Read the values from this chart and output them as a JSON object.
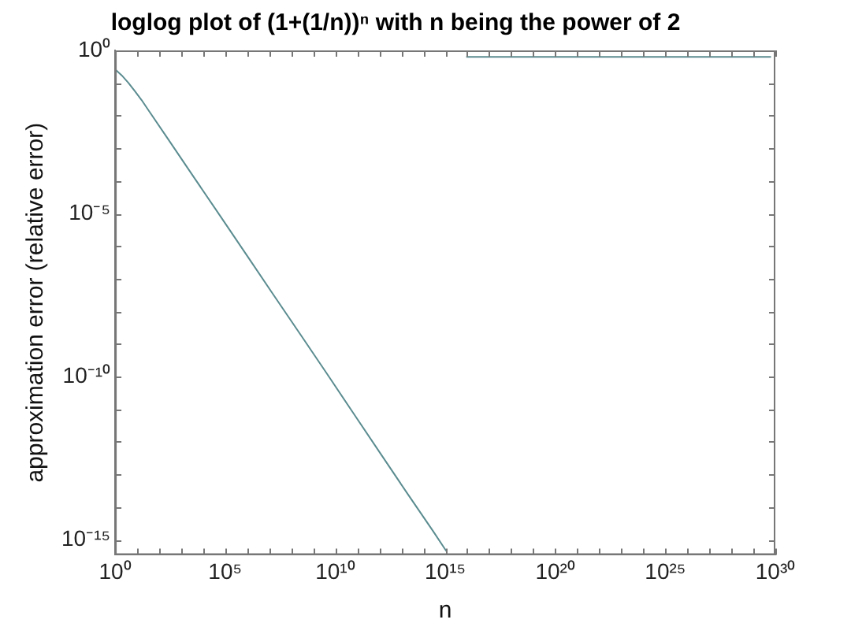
{
  "chart_data": {
    "type": "line",
    "title": "loglog plot of (1+(1/n))ⁿ with n being the power of 2",
    "xlabel": "n",
    "ylabel": "approximation error (relative error)",
    "x": [
      1,
      2,
      4,
      8,
      16,
      32,
      256,
      4096,
      65536,
      1048576,
      16777216,
      268435456,
      4294967296,
      68719476736,
      1099511627776,
      17592186044416,
      281474976710656,
      1125899906842624,
      2251799813685248,
      4503599627370496,
      9007199254740992,
      6.338253001141147e+29
    ],
    "series": [
      {
        "color": "#5b8c90",
        "values": [
          0.264,
          0.172,
          0.102,
          0.056,
          0.03,
          0.015,
          0.0019,
          0.00012,
          7.6e-06,
          4.8e-07,
          3e-08,
          1.9e-09,
          1.2e-10,
          7.3e-12,
          4.5e-13,
          2.8e-14,
          1.8e-15,
          4.4e-16,
          null,
          null,
          0.632,
          0.632
        ]
      }
    ],
    "log": "xy",
    "xlim": [
      1,
      1e+30
    ],
    "ylim": [
      3.4e-16,
      1
    ],
    "xticks": [
      {
        "value": 1,
        "label": "10⁰"
      },
      {
        "value": 10,
        "label": null
      },
      {
        "value": 100,
        "label": null
      },
      {
        "value": 1000,
        "label": null
      },
      {
        "value": 10000,
        "label": null
      },
      {
        "value": 100000.0,
        "label": "10⁵"
      },
      {
        "value": 1000000.0,
        "label": null
      },
      {
        "value": 10000000.0,
        "label": null
      },
      {
        "value": 100000000.0,
        "label": null
      },
      {
        "value": 1000000000.0,
        "label": null
      },
      {
        "value": 10000000000.0,
        "label": "10¹⁰"
      },
      {
        "value": 100000000000.0,
        "label": null
      },
      {
        "value": 1000000000000.0,
        "label": null
      },
      {
        "value": 10000000000000.0,
        "label": null
      },
      {
        "value": 100000000000000.0,
        "label": null
      },
      {
        "value": 1000000000000000.0,
        "label": "10¹⁵"
      },
      {
        "value": 1e+16,
        "label": null
      },
      {
        "value": 1e+17,
        "label": null
      },
      {
        "value": 1e+18,
        "label": null
      },
      {
        "value": 1e+19,
        "label": null
      },
      {
        "value": 1e+20,
        "label": "10²⁰"
      },
      {
        "value": 1e+21,
        "label": null
      },
      {
        "value": 1e+22,
        "label": null
      },
      {
        "value": 1e+23,
        "label": null
      },
      {
        "value": 1e+24,
        "label": null
      },
      {
        "value": 1e+25,
        "label": "10²⁵"
      },
      {
        "value": 1e+26,
        "label": null
      },
      {
        "value": 1e+27,
        "label": null
      },
      {
        "value": 1e+28,
        "label": null
      },
      {
        "value": 1e+29,
        "label": null
      },
      {
        "value": 1e+30,
        "label": "10³⁰"
      }
    ],
    "yticks": [
      {
        "value": 1,
        "label": "10⁰"
      },
      {
        "value": 0.1,
        "label": null
      },
      {
        "value": 0.01,
        "label": null
      },
      {
        "value": 0.001,
        "label": null
      },
      {
        "value": 0.0001,
        "label": null
      },
      {
        "value": 1e-05,
        "label": "10⁻⁵"
      },
      {
        "value": 1e-06,
        "label": null
      },
      {
        "value": 1e-07,
        "label": null
      },
      {
        "value": 1e-08,
        "label": null
      },
      {
        "value": 1e-09,
        "label": null
      },
      {
        "value": 1e-10,
        "label": "10⁻¹⁰"
      },
      {
        "value": 1e-11,
        "label": null
      },
      {
        "value": 1e-12,
        "label": null
      },
      {
        "value": 1e-13,
        "label": null
      },
      {
        "value": 1e-14,
        "label": null
      },
      {
        "value": 1e-15,
        "label": "10⁻¹⁵"
      }
    ],
    "grid": false,
    "legend": false,
    "marker": "none",
    "line_style": "solid"
  }
}
